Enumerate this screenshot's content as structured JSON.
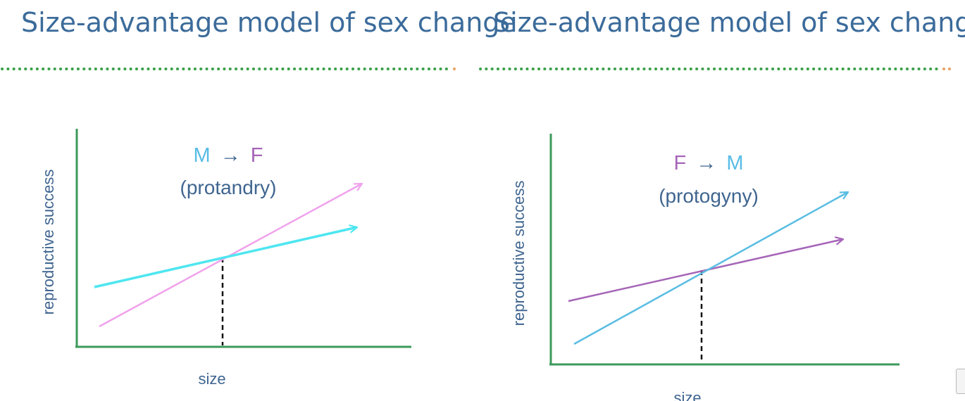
{
  "slides": [
    {
      "title": "Size-advantage model of sex change",
      "label_from": "M",
      "label_arrow": "→",
      "label_to": "F",
      "strategy": "(protandry)",
      "y_axis_label": "reproductive success",
      "x_axis_label": "size"
    },
    {
      "title": "Size-advantage model of sex change",
      "label_from": "F",
      "label_arrow": "→",
      "label_to": "M",
      "strategy": "(protogyny)",
      "y_axis_label": "reproductive success",
      "x_axis_label": "size"
    }
  ],
  "colors": {
    "title": "#3b6b9a",
    "divider_dots": "#3aa049",
    "divider_accent": "#e8a060",
    "axis": "#3c9a5a",
    "male_cyan": "#4ee6f0",
    "female_pink": "#f0a2ec",
    "male_blue": "#59bde2",
    "female_purple": "#a565b8",
    "crossover_line": "#111111",
    "axis_label_text": "#3f6590",
    "strategy_text": "#3f6590"
  }
}
